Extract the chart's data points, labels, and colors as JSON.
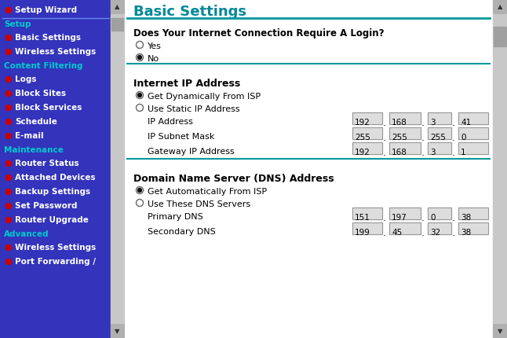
{
  "sidebar_bg": "#3333BB",
  "sidebar_text_color": "#FFFFFF",
  "sidebar_heading_color": "#00CCCC",
  "sidebar_bullet_color": "#CC0000",
  "main_bg": "#FFFFFF",
  "main_title": "Basic Settings",
  "main_title_color": "#008899",
  "divider_color": "#009999",
  "input_box_bg": "#DDDDDD",
  "input_box_border": "#999999",
  "sidebar_items": [
    {
      "text": "Setup Wizard",
      "type": "wizard"
    },
    {
      "text": "Setup",
      "type": "heading"
    },
    {
      "text": "Basic Settings",
      "type": "link"
    },
    {
      "text": "Wireless Settings",
      "type": "link"
    },
    {
      "text": "Content Filtering",
      "type": "heading"
    },
    {
      "text": "Logs",
      "type": "link"
    },
    {
      "text": "Block Sites",
      "type": "link"
    },
    {
      "text": "Block Services",
      "type": "link"
    },
    {
      "text": "Schedule",
      "type": "link"
    },
    {
      "text": "E-mail",
      "type": "link"
    },
    {
      "text": "Maintenance",
      "type": "heading"
    },
    {
      "text": "Router Status",
      "type": "link"
    },
    {
      "text": "Attached Devices",
      "type": "link"
    },
    {
      "text": "Backup Settings",
      "type": "link"
    },
    {
      "text": "Set Password",
      "type": "link"
    },
    {
      "text": "Router Upgrade",
      "type": "link"
    },
    {
      "text": "Advanced",
      "type": "heading"
    },
    {
      "text": "Wireless Settings",
      "type": "link"
    },
    {
      "text": "Port Forwarding /",
      "type": "link"
    }
  ],
  "ip_rows": [
    {
      "label": "IP Address",
      "values": [
        "192",
        "168",
        "3",
        "41"
      ]
    },
    {
      "label": "IP Subnet Mask",
      "values": [
        "255",
        "255",
        "255",
        "0"
      ]
    },
    {
      "label": "Gateway IP Address",
      "values": [
        "192",
        "168",
        "3",
        "1"
      ]
    }
  ],
  "dns_rows": [
    {
      "label": "Primary DNS",
      "values": [
        "151",
        "197",
        "0",
        "38"
      ]
    },
    {
      "label": "Secondary DNS",
      "values": [
        "199",
        "45",
        "32",
        "38"
      ]
    }
  ]
}
